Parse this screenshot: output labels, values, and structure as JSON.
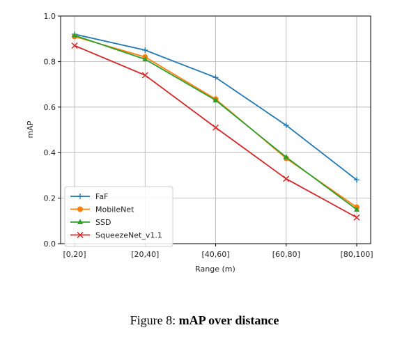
{
  "chart_data": {
    "type": "line",
    "categories": [
      "[0,20]",
      "[20,40]",
      "[40,60]",
      "[60,80]",
      "[80,100]"
    ],
    "xlabel": "Range (m)",
    "ylabel": "mAP",
    "ylim": [
      0.0,
      1.0
    ],
    "yticks": [
      "0.0",
      "0.2",
      "0.4",
      "0.6",
      "0.8",
      "1.0"
    ],
    "grid": true,
    "legend_position": "lower-left",
    "series": [
      {
        "name": "FaF",
        "values": [
          0.92,
          0.85,
          0.73,
          0.52,
          0.28
        ],
        "color": "#1f77b4",
        "marker": "plus"
      },
      {
        "name": "MobileNet",
        "values": [
          0.91,
          0.82,
          0.635,
          0.375,
          0.16
        ],
        "color": "#ff7f0e",
        "marker": "circle"
      },
      {
        "name": "SSD",
        "values": [
          0.915,
          0.81,
          0.63,
          0.38,
          0.15
        ],
        "color": "#2ca02c",
        "marker": "triangle"
      },
      {
        "name": "SqueezeNet_v1.1",
        "values": [
          0.87,
          0.74,
          0.51,
          0.285,
          0.115
        ],
        "color": "#d62728",
        "marker": "x"
      }
    ]
  },
  "caption": {
    "prefix": "Figure 8: ",
    "title": "mAP over distance"
  }
}
